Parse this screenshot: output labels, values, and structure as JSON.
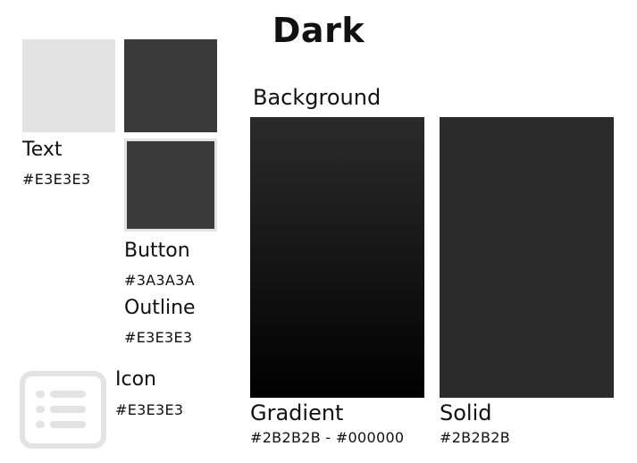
{
  "title": "Dark",
  "colors": {
    "text": "#E3E3E3",
    "button": "#3A3A3A",
    "outline": "#E3E3E3",
    "icon": "#E3E3E3",
    "gradient_start": "#2B2B2B",
    "gradient_end": "#000000",
    "solid": "#2B2B2B"
  },
  "text_swatch": {
    "label": "Text",
    "hex": "#E3E3E3"
  },
  "button_swatch": {
    "label": "Button",
    "hex": "#3A3A3A"
  },
  "outline_swatch": {
    "label": "Outline",
    "hex": "#E3E3E3"
  },
  "icon_swatch": {
    "label": "Icon",
    "hex": "#E3E3E3",
    "icon_name": "list-icon"
  },
  "background": {
    "heading": "Background",
    "gradient": {
      "label": "Gradient",
      "hex": "#2B2B2B - #000000"
    },
    "solid": {
      "label": "Solid",
      "hex": "#2B2B2B"
    }
  }
}
